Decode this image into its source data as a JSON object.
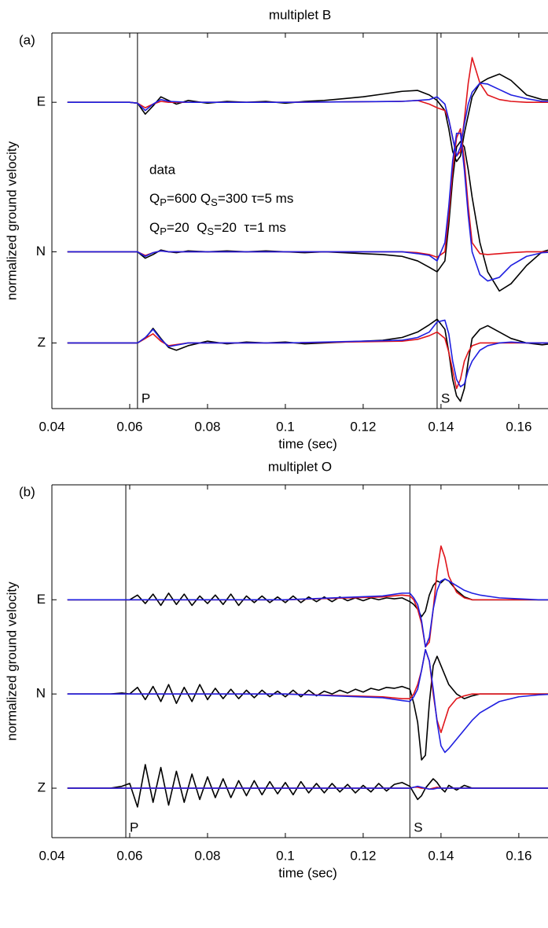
{
  "chart_data": [
    {
      "type": "line",
      "title": "multiplet B",
      "panel_label": "(a)",
      "xlabel": "time (sec)",
      "ylabel": "normalized ground velocity",
      "xlim": [
        0.04,
        0.1675
      ],
      "xticks": [
        0.04,
        0.06,
        0.08,
        0.1,
        0.12,
        0.14,
        0.16
      ],
      "ylim": [
        -0.72,
        3.4
      ],
      "yticks": [
        {
          "value": 2.64,
          "label": "E"
        },
        {
          "value": 1,
          "label": "N"
        },
        {
          "value": 0,
          "label": "Z"
        }
      ],
      "markers": [
        {
          "label": "P",
          "x": 0.062
        },
        {
          "label": "S",
          "x": 0.139
        }
      ],
      "series": [
        {
          "name": "data",
          "color": "#000000",
          "x": [
            0.044,
            0.06,
            0.062,
            0.064,
            0.066,
            0.068,
            0.07,
            0.072,
            0.075,
            0.08,
            0.085,
            0.09,
            0.095,
            0.1,
            0.105,
            0.11,
            0.115,
            0.12,
            0.125,
            0.13,
            0.134,
            0.137,
            0.139,
            0.141,
            0.142,
            0.143,
            0.144,
            0.145,
            0.146,
            0.147,
            0.148,
            0.15,
            0.152,
            0.155,
            0.158,
            0.162,
            0.166,
            0.17
          ],
          "values": [
            [
              2.64,
              2.64,
              2.63,
              2.51,
              2.6,
              2.7,
              2.66,
              2.62,
              2.66,
              2.63,
              2.65,
              2.64,
              2.65,
              2.63,
              2.65,
              2.66,
              2.68,
              2.7,
              2.73,
              2.76,
              2.77,
              2.72,
              2.66,
              2.55,
              2.35,
              2.1,
              1.99,
              2.05,
              2.3,
              2.5,
              2.7,
              2.85,
              2.9,
              2.95,
              2.88,
              2.72,
              2.67,
              2.66
            ],
            [
              1,
              1,
              1,
              0.93,
              0.97,
              1.02,
              1.0,
              0.99,
              1.01,
              1.0,
              1.01,
              1.0,
              1.01,
              1.0,
              0.99,
              1.0,
              0.99,
              0.98,
              0.97,
              0.95,
              0.9,
              0.83,
              0.78,
              0.9,
              1.3,
              1.8,
              2.15,
              2.21,
              2.15,
              1.9,
              1.6,
              1.1,
              0.78,
              0.57,
              0.65,
              0.85,
              1.0,
              1.05
            ],
            [
              0,
              0,
              0,
              0.05,
              0.16,
              0.05,
              -0.05,
              -0.08,
              -0.03,
              0.02,
              -0.01,
              0.01,
              0.0,
              0.01,
              -0.01,
              0.0,
              0.01,
              0.02,
              0.03,
              0.06,
              0.12,
              0.2,
              0.26,
              0.15,
              -0.1,
              -0.4,
              -0.58,
              -0.64,
              -0.5,
              -0.2,
              0.05,
              0.15,
              0.19,
              0.12,
              0.05,
              0.0,
              -0.02,
              0.0
            ]
          ]
        },
        {
          "name": "QP=600 QS=300 τ=5 ms",
          "color": "#e0151b",
          "x": [
            0.044,
            0.06,
            0.062,
            0.064,
            0.066,
            0.068,
            0.07,
            0.075,
            0.1,
            0.13,
            0.134,
            0.137,
            0.139,
            0.141,
            0.142,
            0.143,
            0.144,
            0.145,
            0.146,
            0.147,
            0.148,
            0.15,
            0.152,
            0.155,
            0.158,
            0.162,
            0.166,
            0.17
          ],
          "values": [
            [
              2.64,
              2.64,
              2.63,
              2.58,
              2.62,
              2.65,
              2.64,
              2.64,
              2.64,
              2.65,
              2.66,
              2.62,
              2.58,
              2.55,
              2.45,
              2.25,
              2.05,
              2.1,
              2.45,
              2.85,
              3.13,
              2.85,
              2.72,
              2.67,
              2.65,
              2.64,
              2.64,
              2.64
            ],
            [
              1,
              1,
              1,
              0.96,
              0.99,
              1.01,
              1,
              1,
              1,
              1,
              0.99,
              0.97,
              0.94,
              1.0,
              1.4,
              1.9,
              2.25,
              2.35,
              2.0,
              1.5,
              1.1,
              0.98,
              0.97,
              0.98,
              0.99,
              1,
              1,
              1
            ],
            [
              0,
              0,
              0,
              0.05,
              0.1,
              0.02,
              -0.03,
              0,
              0,
              0.02,
              0.04,
              0.08,
              0.12,
              0.05,
              -0.1,
              -0.3,
              -0.5,
              -0.4,
              -0.2,
              -0.1,
              -0.03,
              0,
              0,
              0,
              0,
              0,
              0,
              0
            ]
          ]
        },
        {
          "name": "QP=20  QS=20  τ=1 ms",
          "color": "#1f1fe0",
          "x": [
            0.044,
            0.06,
            0.062,
            0.064,
            0.066,
            0.068,
            0.07,
            0.075,
            0.1,
            0.13,
            0.134,
            0.137,
            0.139,
            0.141,
            0.142,
            0.143,
            0.144,
            0.145,
            0.146,
            0.147,
            0.148,
            0.15,
            0.152,
            0.155,
            0.158,
            0.162,
            0.166,
            0.17
          ],
          "values": [
            [
              2.64,
              2.64,
              2.63,
              2.55,
              2.62,
              2.67,
              2.65,
              2.64,
              2.64,
              2.65,
              2.66,
              2.67,
              2.7,
              2.62,
              2.45,
              2.25,
              2.05,
              2.15,
              2.4,
              2.62,
              2.75,
              2.85,
              2.84,
              2.78,
              2.72,
              2.68,
              2.65,
              2.65
            ],
            [
              1,
              1,
              1,
              0.95,
              0.99,
              1.01,
              1,
              1,
              1,
              1,
              0.98,
              0.96,
              0.9,
              1.1,
              1.5,
              2.0,
              2.3,
              2.3,
              1.9,
              1.4,
              1.0,
              0.75,
              0.68,
              0.72,
              0.85,
              0.95,
              0.99,
              1.0
            ],
            [
              0,
              0,
              0,
              0.06,
              0.15,
              0.04,
              -0.04,
              0,
              0,
              0.03,
              0.06,
              0.12,
              0.23,
              0.25,
              0.1,
              -0.2,
              -0.4,
              -0.48,
              -0.45,
              -0.3,
              -0.2,
              -0.08,
              -0.03,
              0,
              0.01,
              0,
              0,
              0
            ]
          ]
        }
      ]
    },
    {
      "type": "line",
      "title": "multiplet O",
      "panel_label": "(b)",
      "xlabel": "time (sec)",
      "ylabel": "normalized ground velocity",
      "xlim": [
        0.04,
        0.1675
      ],
      "xticks": [
        0.04,
        0.06,
        0.08,
        0.1,
        0.12,
        0.14,
        0.16
      ],
      "ylim": [
        -0.525,
        3.22
      ],
      "yticks": [
        {
          "value": 2,
          "label": "E"
        },
        {
          "value": 1,
          "label": "N"
        },
        {
          "value": 0,
          "label": "Z"
        }
      ],
      "markers": [
        {
          "label": "P",
          "x": 0.059
        },
        {
          "label": "S",
          "x": 0.132
        }
      ],
      "series": [
        {
          "color": "#000000",
          "x": [
            0.044,
            0.05,
            0.055,
            0.058,
            0.06,
            0.062,
            0.064,
            0.066,
            0.068,
            0.07,
            0.072,
            0.074,
            0.076,
            0.078,
            0.08,
            0.082,
            0.084,
            0.086,
            0.088,
            0.09,
            0.092,
            0.094,
            0.096,
            0.098,
            0.1,
            0.102,
            0.104,
            0.106,
            0.108,
            0.11,
            0.112,
            0.114,
            0.116,
            0.118,
            0.12,
            0.122,
            0.124,
            0.126,
            0.128,
            0.13,
            0.132,
            0.133,
            0.134,
            0.135,
            0.136,
            0.137,
            0.138,
            0.139,
            0.14,
            0.141,
            0.142,
            0.144,
            0.146,
            0.148,
            0.15,
            0.155,
            0.16,
            0.165,
            0.17
          ],
          "values": [
            [
              2,
              2,
              2,
              2,
              2.0,
              2.05,
              1.96,
              2.06,
              1.94,
              2.07,
              1.95,
              2.06,
              1.94,
              2.04,
              1.96,
              2.05,
              1.95,
              2.06,
              1.94,
              2.04,
              1.97,
              2.04,
              1.97,
              2.03,
              1.97,
              2.04,
              1.97,
              2.03,
              1.98,
              2.03,
              1.98,
              2.03,
              1.99,
              2.02,
              1.99,
              2.02,
              2.0,
              2.02,
              2.01,
              2.02,
              1.98,
              1.95,
              1.9,
              1.82,
              1.88,
              2.05,
              2.15,
              2.2,
              2.18,
              2.22,
              2.2,
              2.1,
              2.03,
              2.0,
              2.0,
              2.0,
              2.0,
              2.0,
              2.0
            ],
            [
              1,
              1,
              1,
              1.01,
              1.0,
              1.07,
              0.94,
              1.08,
              0.92,
              1.1,
              0.9,
              1.07,
              0.92,
              1.1,
              0.94,
              1.06,
              0.95,
              1.05,
              0.95,
              1.04,
              0.96,
              1.04,
              0.97,
              1.03,
              0.97,
              1.04,
              0.97,
              1.04,
              0.98,
              1.03,
              1.0,
              1.04,
              1.01,
              1.05,
              1.02,
              1.06,
              1.04,
              1.07,
              1.06,
              1.08,
              1.05,
              0.9,
              0.7,
              0.3,
              0.35,
              0.9,
              1.3,
              1.4,
              1.3,
              1.2,
              1.1,
              1.0,
              0.95,
              0.98,
              1.0,
              1.0,
              1.0,
              1.0,
              1.0
            ],
            [
              0,
              0,
              0,
              0.02,
              0.05,
              -0.2,
              0.25,
              -0.15,
              0.22,
              -0.18,
              0.18,
              -0.15,
              0.15,
              -0.12,
              0.12,
              -0.1,
              0.1,
              -0.1,
              0.08,
              -0.08,
              0.08,
              -0.07,
              0.07,
              -0.06,
              0.06,
              -0.07,
              0.07,
              -0.05,
              0.05,
              -0.05,
              0.05,
              -0.04,
              0.04,
              -0.05,
              0.03,
              -0.04,
              0.05,
              -0.03,
              0.04,
              0.06,
              0.02,
              -0.05,
              -0.12,
              -0.08,
              0.0,
              0.05,
              0.1,
              0.06,
              0.0,
              -0.04,
              0.03,
              -0.02,
              0.03,
              0.0,
              0.0,
              0,
              0,
              0,
              0
            ]
          ]
        },
        {
          "color": "#e0151b",
          "x": [
            0.044,
            0.1,
            0.125,
            0.13,
            0.132,
            0.133,
            0.134,
            0.135,
            0.136,
            0.137,
            0.138,
            0.139,
            0.14,
            0.141,
            0.142,
            0.144,
            0.146,
            0.148,
            0.15,
            0.155,
            0.16,
            0.165,
            0.17
          ],
          "values": [
            [
              2,
              2,
              2.03,
              2.05,
              2.04,
              2.0,
              1.9,
              1.75,
              1.5,
              1.55,
              1.9,
              2.3,
              2.57,
              2.45,
              2.25,
              2.08,
              2.02,
              2.0,
              2.0,
              2.0,
              2.0,
              2.0,
              2.0
            ],
            [
              1,
              1,
              0.97,
              0.95,
              0.95,
              1.0,
              1.1,
              1.25,
              1.47,
              1.35,
              1.0,
              0.72,
              0.59,
              0.72,
              0.85,
              0.95,
              0.98,
              1.0,
              1.0,
              1.0,
              1.0,
              1.0,
              1.0
            ],
            [
              0,
              0,
              0,
              0,
              0,
              0.01,
              0.01,
              0,
              0,
              -0.01,
              0,
              0.01,
              0,
              0,
              0,
              0,
              0,
              0,
              0,
              0,
              0,
              0,
              0
            ]
          ]
        },
        {
          "color": "#1f1fe0",
          "x": [
            0.044,
            0.1,
            0.125,
            0.13,
            0.132,
            0.133,
            0.134,
            0.135,
            0.136,
            0.137,
            0.138,
            0.139,
            0.14,
            0.141,
            0.142,
            0.144,
            0.146,
            0.148,
            0.15,
            0.155,
            0.16,
            0.165,
            0.17
          ],
          "values": [
            [
              2,
              2,
              2.04,
              2.07,
              2.07,
              2.02,
              1.95,
              1.78,
              1.5,
              1.6,
              1.9,
              2.1,
              2.2,
              2.22,
              2.2,
              2.15,
              2.1,
              2.07,
              2.05,
              2.02,
              2.01,
              2.0,
              2.0
            ],
            [
              1,
              1,
              0.96,
              0.93,
              0.92,
              0.97,
              1.05,
              1.25,
              1.47,
              1.35,
              1.05,
              0.7,
              0.45,
              0.38,
              0.42,
              0.52,
              0.62,
              0.72,
              0.8,
              0.92,
              0.97,
              0.99,
              1.0
            ],
            [
              0,
              0,
              0,
              0,
              0,
              0.01,
              0.02,
              0.01,
              0,
              -0.01,
              -0.01,
              0,
              0,
              0,
              0,
              0,
              0,
              0,
              0,
              0,
              0,
              0,
              0
            ]
          ]
        }
      ]
    }
  ]
}
